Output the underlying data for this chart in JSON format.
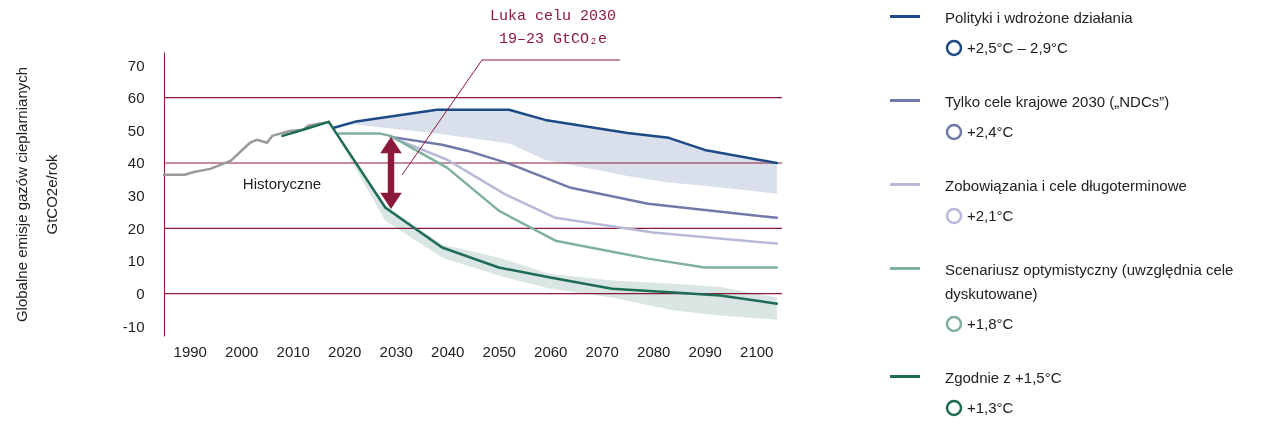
{
  "chart_data": {
    "type": "line",
    "ylabel": "Globalne emisje gazów cieplarnianych\nGtCO2e/rok",
    "xlim": [
      1985,
      2105
    ],
    "xticks": [
      1990,
      2000,
      2010,
      2020,
      2030,
      2040,
      2050,
      2060,
      2070,
      2080,
      2090,
      2100
    ],
    "ylim": [
      -13,
      74
    ],
    "yticks": [
      {
        "value": -10,
        "label": "-10"
      },
      0,
      10,
      20,
      30,
      40,
      50,
      60,
      70
    ],
    "legend": "right",
    "ref_lines": [
      {
        "axis": "y",
        "value": 0,
        "color": "#8b1a3a"
      },
      {
        "axis": "y",
        "value": 20,
        "color": "#8b1a3a"
      },
      {
        "axis": "y",
        "value": 40,
        "color": "#8b1a3a"
      },
      {
        "axis": "y",
        "value": 60,
        "color": "#8b1a3a"
      }
    ],
    "series": [
      {
        "color": "#9a9a9a",
        "x": [
          1985,
          1989,
          1991,
          1994,
          1998,
          2001.7,
          2003,
          2005,
          2006,
          2009.4,
          2012,
          2013,
          2017
        ],
        "values": [
          36.4,
          36.4,
          37.3,
          38.2,
          40.7,
          46.2,
          47.1,
          46.2,
          48.3,
          49.8,
          50.2,
          51.4,
          52.6
        ]
      },
      {
        "name": "Polityki i wdrożone działania",
        "color": "#1b4a86",
        "x": [
          2018,
          2022,
          2038,
          2052,
          2059,
          2075,
          2083,
          2090,
          2104
        ],
        "values": [
          50.8,
          52.6,
          56.3,
          56.3,
          53.2,
          49.2,
          47.7,
          44,
          40
        ],
        "lower": [
          50.8,
          51.8,
          49,
          46,
          41,
          36,
          34,
          33,
          30.6
        ],
        "upper": [
          50.8,
          52.6,
          56.3,
          56.3,
          53.2,
          49.2,
          47.7,
          44,
          40
        ]
      },
      {
        "name": "Tylko cele krajowe 2030 („NDCs”)",
        "color": "#7179aa",
        "x": [
          2029,
          2039,
          2044,
          2052,
          2064,
          2079,
          2104
        ],
        "values": [
          48,
          45.6,
          43.7,
          39.8,
          32.4,
          27.5,
          23.2
        ]
      },
      {
        "name": "Zobowiązania i cele długoterminowe",
        "color": "#b7bad7",
        "x": [
          2029,
          2040,
          2051,
          2061,
          2080,
          2104
        ],
        "values": [
          48,
          41,
          30.6,
          23.2,
          18.7,
          15.3
        ]
      },
      {
        "name": "Scenariusz optymistyczny (uwzględnia cele dyskutowane)",
        "color": "#7fb0a0",
        "x": [
          2019,
          2027,
          2029,
          2040,
          2050,
          2061,
          2079,
          2090,
          2104
        ],
        "values": [
          49,
          49,
          48.3,
          38.5,
          25.4,
          16.2,
          10.7,
          8,
          8
        ]
      },
      {
        "name": "Zgodnie z +1,5°C",
        "color": "#1e6b58",
        "x": [
          2008,
          2012,
          2017,
          2028,
          2039,
          2050,
          2060,
          2072,
          2084,
          2093,
          2104
        ],
        "values": [
          48.3,
          50.2,
          52.6,
          26.3,
          14.1,
          8,
          4.9,
          1.5,
          0.3,
          -0.6,
          -3.1
        ],
        "lower": [
          null,
          null,
          52.6,
          22.3,
          11,
          5.5,
          1.5,
          -1.2,
          -5.2,
          -6.7,
          -8
        ],
        "upper": [
          null,
          null,
          52.6,
          27,
          15,
          11,
          6,
          4,
          3,
          2,
          -1.2
        ]
      }
    ],
    "annotations": [
      "Luka celu 2030\n19–23 GtCO₂e",
      "Historyczne",
      "+2,5°C – 2,9°C",
      "+2,4°C",
      "+2,1°C",
      "+1,8°C",
      "+1,3°C"
    ]
  }
}
